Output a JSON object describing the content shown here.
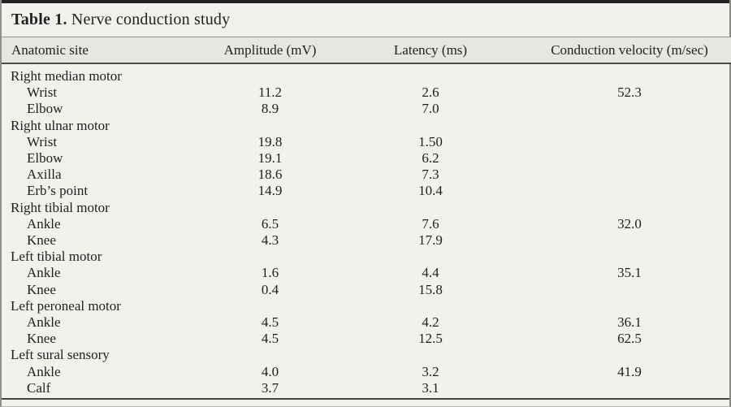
{
  "title": {
    "label": "Table 1.",
    "text": " Nerve conduction study"
  },
  "table": {
    "columns": {
      "site": "Anatomic site",
      "amplitude": "Amplitude (mV)",
      "latency": "Latency (ms)",
      "velocity": "Conduction velocity (m/sec)"
    },
    "groups": [
      {
        "name": "Right median motor",
        "rows": [
          {
            "site": "Wrist",
            "amplitude": "11.2",
            "latency": "2.6",
            "velocity": "52.3"
          },
          {
            "site": "Elbow",
            "amplitude": "8.9",
            "latency": "7.0",
            "velocity": ""
          }
        ]
      },
      {
        "name": "Right ulnar motor",
        "rows": [
          {
            "site": "Wrist",
            "amplitude": "19.8",
            "latency": "1.50",
            "velocity": ""
          },
          {
            "site": "Elbow",
            "amplitude": "19.1",
            "latency": "6.2",
            "velocity": ""
          },
          {
            "site": "Axilla",
            "amplitude": "18.6",
            "latency": "7.3",
            "velocity": ""
          },
          {
            "site": "Erb’s point",
            "amplitude": "14.9",
            "latency": "10.4",
            "velocity": ""
          }
        ]
      },
      {
        "name": "Right tibial motor",
        "rows": [
          {
            "site": "Ankle",
            "amplitude": "6.5",
            "latency": "7.6",
            "velocity": "32.0"
          },
          {
            "site": "Knee",
            "amplitude": "4.3",
            "latency": "17.9",
            "velocity": ""
          }
        ]
      },
      {
        "name": "Left tibial motor",
        "rows": [
          {
            "site": "Ankle",
            "amplitude": "1.6",
            "latency": "4.4",
            "velocity": "35.1"
          },
          {
            "site": "Knee",
            "amplitude": "0.4",
            "latency": "15.8",
            "velocity": ""
          }
        ]
      },
      {
        "name": "Left peroneal motor",
        "rows": [
          {
            "site": "Ankle",
            "amplitude": "4.5",
            "latency": "4.2",
            "velocity": "36.1"
          },
          {
            "site": "Knee",
            "amplitude": "4.5",
            "latency": "12.5",
            "velocity": "62.5"
          }
        ]
      },
      {
        "name": "Left sural sensory",
        "rows": [
          {
            "site": "Ankle",
            "amplitude": "4.0",
            "latency": "3.2",
            "velocity": "41.9"
          },
          {
            "site": "Calf",
            "amplitude": "3.7",
            "latency": "3.1",
            "velocity": ""
          }
        ]
      }
    ]
  },
  "colors": {
    "page_background": "#f2f1ee",
    "header_band": "#e7e6e2",
    "rule_light": "#8f8f8b",
    "rule_dark": "#45453f",
    "top_bar": "#242424",
    "text": "#1f1f1f"
  }
}
